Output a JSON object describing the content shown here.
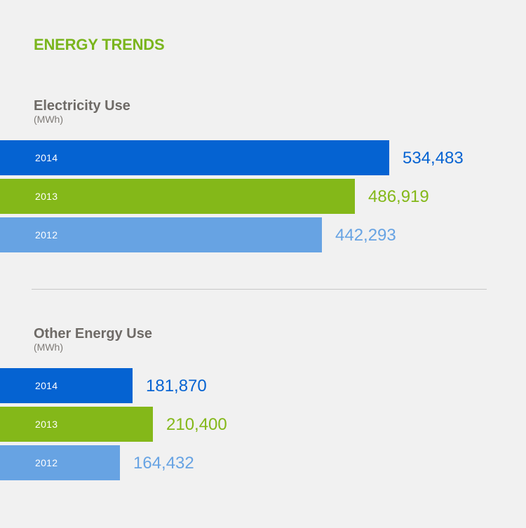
{
  "header": {
    "title": "ENERGY TRENDS"
  },
  "colors": {
    "title": "#7ab51d",
    "y2014": "#0563d2",
    "y2013": "#84b819",
    "y2012": "#67a3e3",
    "text": "#6e6a66"
  },
  "chart_data": [
    {
      "type": "bar",
      "orientation": "horizontal",
      "title": "Electricity Use",
      "unit": "(MWh)",
      "categories": [
        "2014",
        "2013",
        "2012"
      ],
      "values": [
        534483,
        486919,
        442293
      ],
      "value_labels": [
        "534,483",
        "486,919",
        "442,293"
      ],
      "colors": [
        "#0563d2",
        "#84b819",
        "#67a3e3"
      ],
      "legend": "none",
      "grid": false
    },
    {
      "type": "bar",
      "orientation": "horizontal",
      "title": "Other Energy Use",
      "unit": "(MWh)",
      "categories": [
        "2014",
        "2013",
        "2012"
      ],
      "values": [
        181870,
        210400,
        164432
      ],
      "value_labels": [
        "181,870",
        "210,400",
        "164,432"
      ],
      "colors": [
        "#0563d2",
        "#84b819",
        "#67a3e3"
      ],
      "legend": "none",
      "grid": false
    }
  ]
}
